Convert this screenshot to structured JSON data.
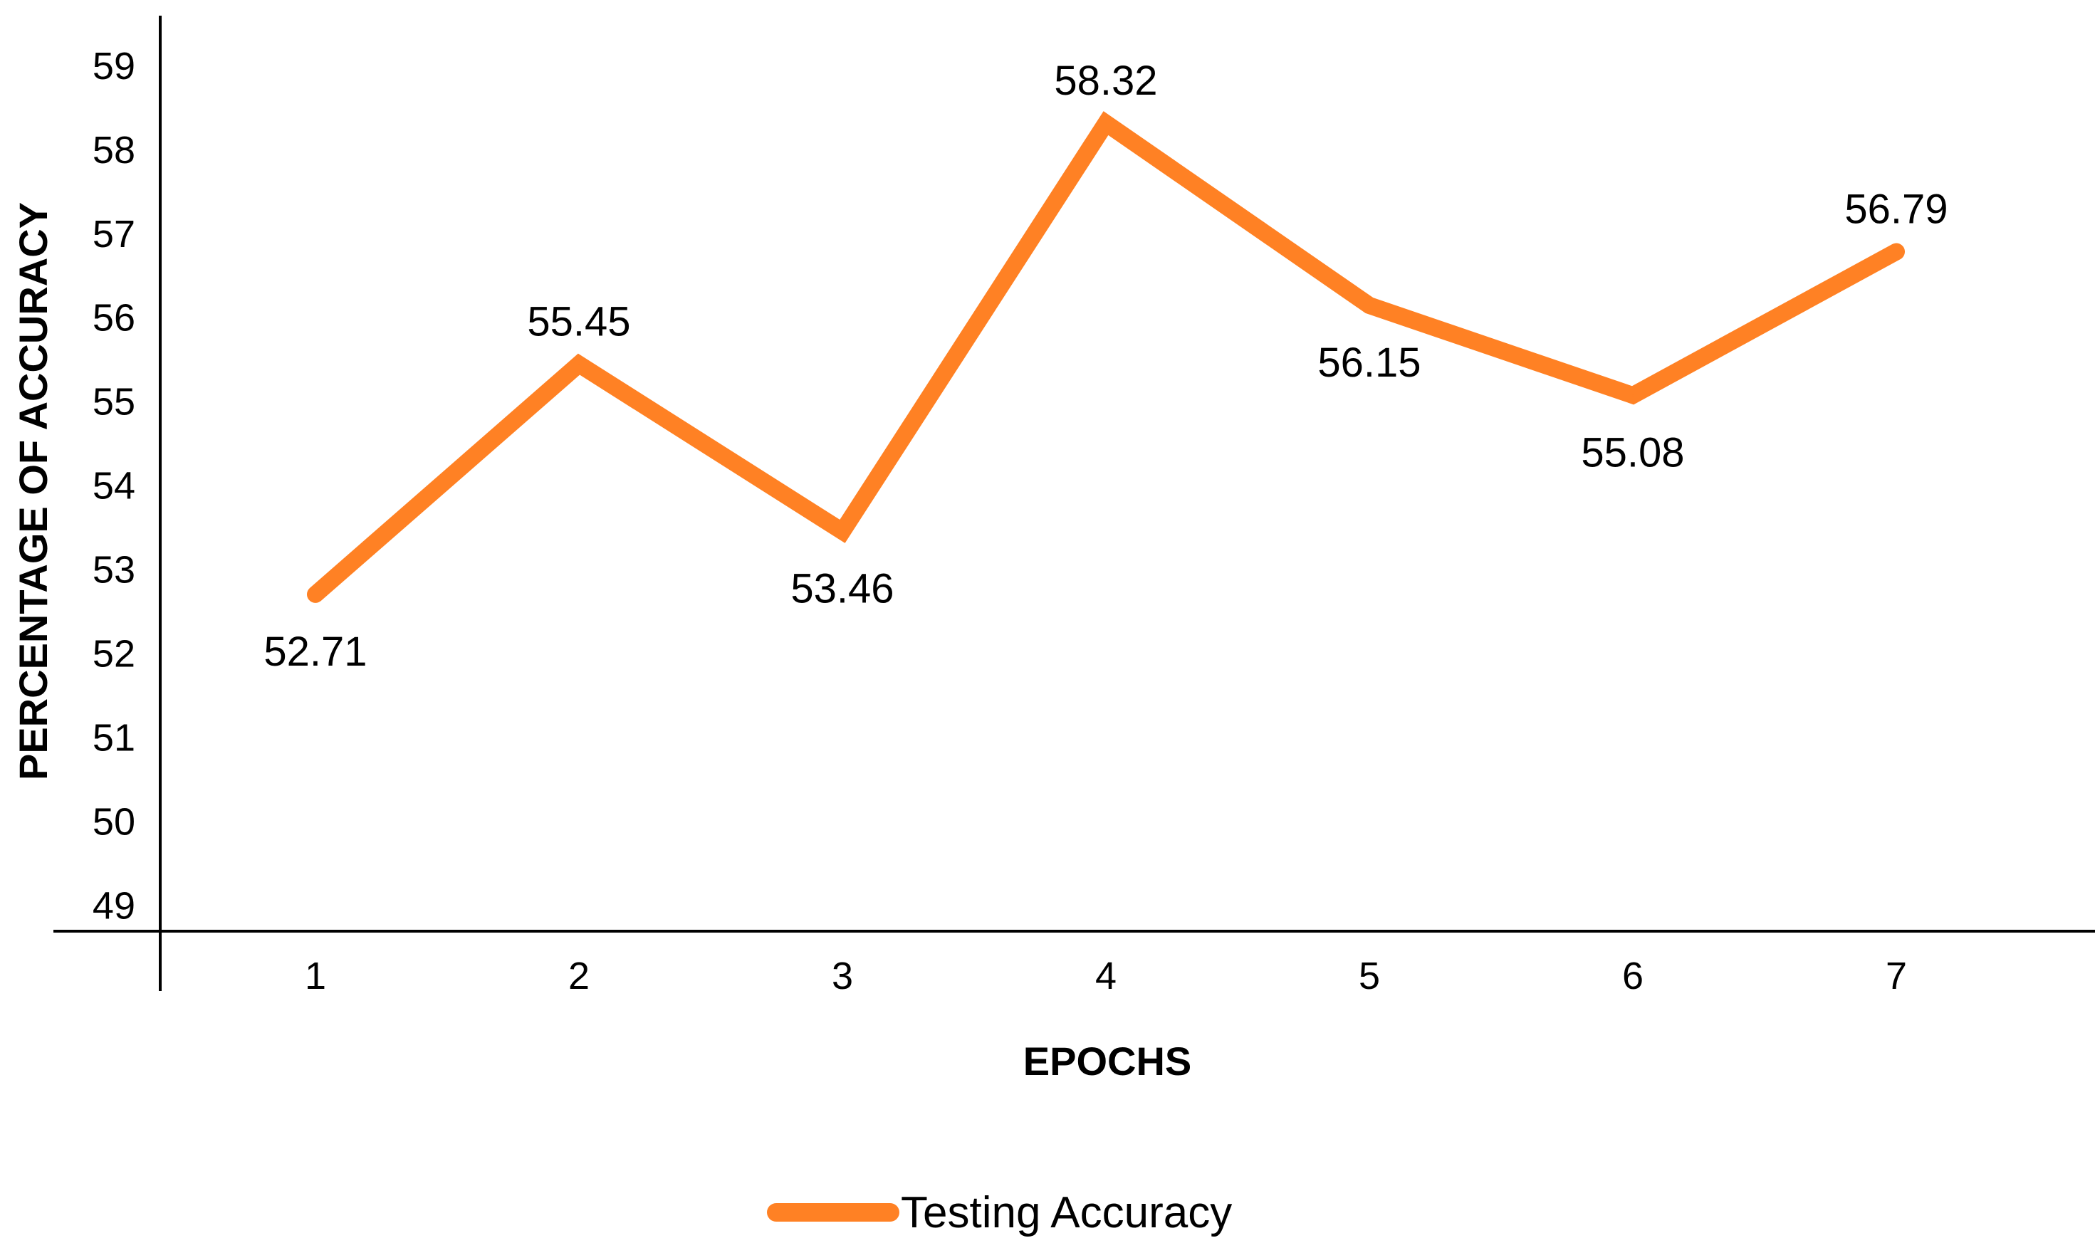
{
  "chart_data": {
    "type": "line",
    "x": [
      "1",
      "2",
      "3",
      "4",
      "5",
      "6",
      "7"
    ],
    "series": [
      {
        "name": "Testing Accuracy",
        "values": [
          52.71,
          55.45,
          53.46,
          58.32,
          56.15,
          55.08,
          56.79
        ],
        "data_labels": [
          "52.71",
          "55.45",
          "53.46",
          "58.32",
          "56.15",
          "55.08",
          "56.79"
        ],
        "color": "#FF8124"
      }
    ],
    "xlabel": "EPOCHS",
    "ylabel": "PERCENTAGE OF ACCURACY",
    "y_ticks": [
      "49",
      "50",
      "51",
      "52",
      "53",
      "54",
      "55",
      "56",
      "57",
      "58",
      "59"
    ],
    "ylim": [
      48.7,
      59.6
    ],
    "grid": false,
    "legend": {
      "position": "bottom",
      "label": "Testing Accuracy"
    }
  }
}
